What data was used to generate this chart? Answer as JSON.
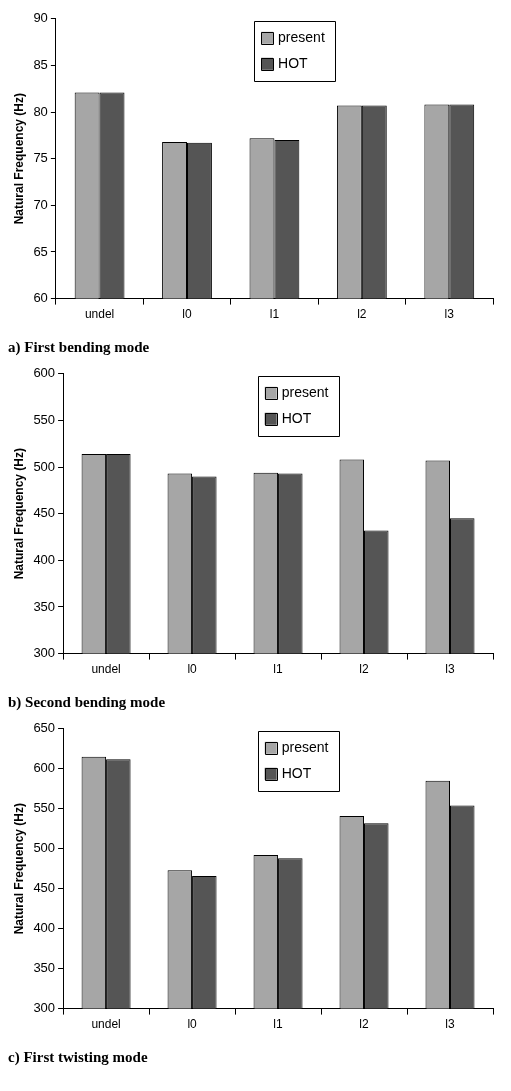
{
  "chart_data": [
    {
      "type": "bar",
      "title": "a) First bending mode",
      "ylabel": "Natural Frequency (Hz)",
      "categories": [
        "undel",
        "l0",
        "l1",
        "l2",
        "l3"
      ],
      "series": [
        {
          "name": "present",
          "color": "#a6a6a6",
          "values": [
            82.1,
            76.8,
            77.2,
            80.7,
            80.8
          ]
        },
        {
          "name": "HOT",
          "color": "#555555",
          "values": [
            82.1,
            76.7,
            77.0,
            80.7,
            80.8
          ]
        }
      ],
      "ylim": [
        60,
        90
      ],
      "yticks": [
        60,
        65,
        70,
        75,
        80,
        85,
        90
      ],
      "grid": false,
      "legend": "top"
    },
    {
      "type": "bar",
      "title": "b) Second bending mode",
      "ylabel": "Natural Frequency (Hz)",
      "categories": [
        "undel",
        "l0",
        "l1",
        "l2",
        "l3"
      ],
      "series": [
        {
          "name": "present",
          "color": "#a6a6a6",
          "values": [
            514,
            493,
            494,
            508,
            507
          ]
        },
        {
          "name": "HOT",
          "color": "#555555",
          "values": [
            514,
            490,
            493,
            432,
            445
          ]
        }
      ],
      "ylim": [
        300,
        600
      ],
      "yticks": [
        300,
        350,
        400,
        450,
        500,
        550,
        600
      ],
      "grid": false,
      "legend": "top"
    },
    {
      "type": "bar",
      "title": "c) First twisting mode",
      "ylabel": "Natural Frequency (Hz)",
      "categories": [
        "undel",
        "l0",
        "l1",
        "l2",
        "l3"
      ],
      "series": [
        {
          "name": "present",
          "color": "#a6a6a6",
          "values": [
            615,
            473,
            492,
            541,
            585
          ]
        },
        {
          "name": "HOT",
          "color": "#555555",
          "values": [
            612,
            466,
            488,
            532,
            554
          ]
        }
      ],
      "ylim": [
        300,
        650
      ],
      "yticks": [
        300,
        350,
        400,
        450,
        500,
        550,
        600,
        650
      ],
      "grid": false,
      "legend": "top"
    }
  ]
}
